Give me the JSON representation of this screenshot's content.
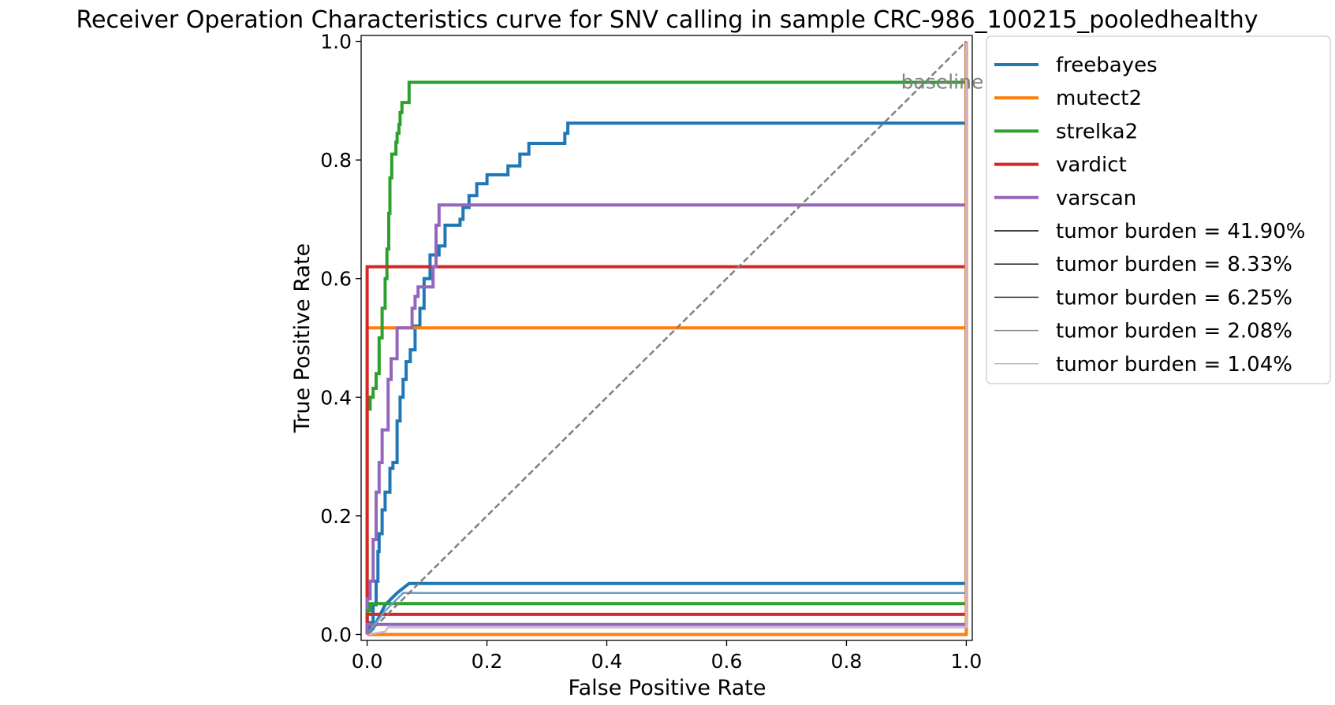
{
  "chart_data": {
    "type": "line",
    "title": "Receiver Operation Characteristics curve for SNV calling in sample CRC-986_100215_pooledhealthy",
    "xlabel": "False Positive Rate",
    "ylabel": "True Positive Rate",
    "xlim": [
      -0.01,
      1.01
    ],
    "ylim": [
      -0.01,
      1.01
    ],
    "xticks": [
      {
        "value": 0.0,
        "label": "0.0"
      },
      {
        "value": 0.2,
        "label": "0.2"
      },
      {
        "value": 0.4,
        "label": "0.4"
      },
      {
        "value": 0.6,
        "label": "0.6"
      },
      {
        "value": 0.8,
        "label": "0.8"
      },
      {
        "value": 1.0,
        "label": "1.0"
      }
    ],
    "yticks": [
      {
        "value": 0.0,
        "label": "0.0"
      },
      {
        "value": 0.2,
        "label": "0.2"
      },
      {
        "value": 0.4,
        "label": "0.4"
      },
      {
        "value": 0.6,
        "label": "0.6"
      },
      {
        "value": 0.8,
        "label": "0.8"
      },
      {
        "value": 1.0,
        "label": "1.0"
      }
    ],
    "grid": false,
    "legend_position": "outside-right-top",
    "colors": {
      "freebayes": "#1f77b4",
      "mutect2": "#ff7f0e",
      "strelka2": "#2ca02c",
      "vardict": "#d62728",
      "varscan": "#9467bd",
      "baseline": "#808080"
    },
    "baseline": {
      "label": "baseline",
      "points": [
        [
          0,
          0
        ],
        [
          1,
          1
        ]
      ],
      "label_at": [
        0.96,
        0.91
      ]
    },
    "series": [
      {
        "name": "freebayes",
        "tumor_burden": "41.90%",
        "color": "#1f77b4",
        "width": 4,
        "points": [
          [
            0,
            0
          ],
          [
            0.005,
            0
          ],
          [
            0.005,
            0.02
          ],
          [
            0.01,
            0.02
          ],
          [
            0.01,
            0.05
          ],
          [
            0.015,
            0.05
          ],
          [
            0.015,
            0.09
          ],
          [
            0.018,
            0.09
          ],
          [
            0.018,
            0.14
          ],
          [
            0.02,
            0.14
          ],
          [
            0.02,
            0.17
          ],
          [
            0.025,
            0.17
          ],
          [
            0.025,
            0.21
          ],
          [
            0.03,
            0.21
          ],
          [
            0.03,
            0.24
          ],
          [
            0.038,
            0.24
          ],
          [
            0.038,
            0.28
          ],
          [
            0.043,
            0.28
          ],
          [
            0.043,
            0.29
          ],
          [
            0.05,
            0.29
          ],
          [
            0.05,
            0.36
          ],
          [
            0.055,
            0.36
          ],
          [
            0.055,
            0.4
          ],
          [
            0.06,
            0.4
          ],
          [
            0.06,
            0.43
          ],
          [
            0.065,
            0.43
          ],
          [
            0.065,
            0.46
          ],
          [
            0.072,
            0.46
          ],
          [
            0.072,
            0.48
          ],
          [
            0.08,
            0.48
          ],
          [
            0.08,
            0.52
          ],
          [
            0.088,
            0.52
          ],
          [
            0.088,
            0.55
          ],
          [
            0.095,
            0.55
          ],
          [
            0.095,
            0.6
          ],
          [
            0.105,
            0.6
          ],
          [
            0.105,
            0.64
          ],
          [
            0.12,
            0.64
          ],
          [
            0.12,
            0.655
          ],
          [
            0.13,
            0.655
          ],
          [
            0.13,
            0.69
          ],
          [
            0.14,
            0.69
          ],
          [
            0.14,
            0.69
          ],
          [
            0.155,
            0.69
          ],
          [
            0.155,
            0.7
          ],
          [
            0.16,
            0.7
          ],
          [
            0.16,
            0.72
          ],
          [
            0.17,
            0.72
          ],
          [
            0.17,
            0.74
          ],
          [
            0.183,
            0.74
          ],
          [
            0.183,
            0.76
          ],
          [
            0.2,
            0.76
          ],
          [
            0.2,
            0.775
          ],
          [
            0.235,
            0.775
          ],
          [
            0.235,
            0.79
          ],
          [
            0.255,
            0.79
          ],
          [
            0.255,
            0.81
          ],
          [
            0.27,
            0.81
          ],
          [
            0.27,
            0.828
          ],
          [
            0.33,
            0.828
          ],
          [
            0.33,
            0.845
          ],
          [
            0.335,
            0.845
          ],
          [
            0.335,
            0.862
          ],
          [
            1.0,
            0.862
          ],
          [
            1.0,
            1.0
          ]
        ]
      },
      {
        "name": "mutect2",
        "tumor_burden": "41.90%",
        "color": "#ff7f0e",
        "width": 4,
        "points": [
          [
            0,
            0
          ],
          [
            0,
            0.517
          ],
          [
            1.0,
            0.517
          ],
          [
            1.0,
            1.0
          ]
        ]
      },
      {
        "name": "strelka2",
        "tumor_burden": "41.90%",
        "color": "#2ca02c",
        "width": 4,
        "points": [
          [
            0,
            0
          ],
          [
            0,
            0.38
          ],
          [
            0.005,
            0.38
          ],
          [
            0.005,
            0.4
          ],
          [
            0.01,
            0.4
          ],
          [
            0.01,
            0.415
          ],
          [
            0.015,
            0.415
          ],
          [
            0.015,
            0.44
          ],
          [
            0.02,
            0.44
          ],
          [
            0.02,
            0.5
          ],
          [
            0.025,
            0.5
          ],
          [
            0.025,
            0.55
          ],
          [
            0.03,
            0.55
          ],
          [
            0.03,
            0.6
          ],
          [
            0.033,
            0.6
          ],
          [
            0.033,
            0.65
          ],
          [
            0.036,
            0.65
          ],
          [
            0.036,
            0.71
          ],
          [
            0.038,
            0.71
          ],
          [
            0.038,
            0.77
          ],
          [
            0.041,
            0.77
          ],
          [
            0.041,
            0.81
          ],
          [
            0.048,
            0.81
          ],
          [
            0.048,
            0.83
          ],
          [
            0.05,
            0.83
          ],
          [
            0.05,
            0.845
          ],
          [
            0.053,
            0.845
          ],
          [
            0.053,
            0.86
          ],
          [
            0.055,
            0.86
          ],
          [
            0.055,
            0.88
          ],
          [
            0.058,
            0.88
          ],
          [
            0.058,
            0.897
          ],
          [
            0.07,
            0.897
          ],
          [
            0.07,
            0.931
          ],
          [
            1.0,
            0.931
          ],
          [
            1.0,
            1.0
          ]
        ]
      },
      {
        "name": "vardict",
        "tumor_burden": "41.90%",
        "color": "#d62728",
        "width": 4,
        "points": [
          [
            0,
            0
          ],
          [
            0,
            0.62
          ],
          [
            1.0,
            0.62
          ],
          [
            1.0,
            1.0
          ]
        ]
      },
      {
        "name": "varscan",
        "tumor_burden": "41.90%",
        "color": "#9467bd",
        "width": 4,
        "points": [
          [
            0,
            0
          ],
          [
            0,
            0.06
          ],
          [
            0.005,
            0.06
          ],
          [
            0.005,
            0.09
          ],
          [
            0.01,
            0.09
          ],
          [
            0.01,
            0.16
          ],
          [
            0.015,
            0.16
          ],
          [
            0.015,
            0.24
          ],
          [
            0.02,
            0.24
          ],
          [
            0.02,
            0.29
          ],
          [
            0.025,
            0.29
          ],
          [
            0.025,
            0.345
          ],
          [
            0.035,
            0.345
          ],
          [
            0.035,
            0.43
          ],
          [
            0.04,
            0.43
          ],
          [
            0.04,
            0.465
          ],
          [
            0.05,
            0.465
          ],
          [
            0.05,
            0.483
          ],
          [
            0.05,
            0.483
          ],
          [
            0.05,
            0.517
          ],
          [
            0.075,
            0.517
          ],
          [
            0.075,
            0.55
          ],
          [
            0.08,
            0.55
          ],
          [
            0.08,
            0.57
          ],
          [
            0.085,
            0.57
          ],
          [
            0.085,
            0.586
          ],
          [
            0.11,
            0.586
          ],
          [
            0.11,
            0.62
          ],
          [
            0.115,
            0.62
          ],
          [
            0.115,
            0.69
          ],
          [
            0.12,
            0.69
          ],
          [
            0.12,
            0.724
          ],
          [
            1.0,
            0.724
          ],
          [
            1.0,
            1.0
          ]
        ]
      },
      {
        "name": "freebayes",
        "tumor_burden": "8.33%",
        "color": "#1f77b4",
        "width": 4,
        "points": [
          [
            0,
            0
          ],
          [
            0.01,
            0.01
          ],
          [
            0.02,
            0.03
          ],
          [
            0.03,
            0.05
          ],
          [
            0.04,
            0.06
          ],
          [
            0.05,
            0.07
          ],
          [
            0.07,
            0.086
          ],
          [
            1.0,
            0.086
          ],
          [
            1.0,
            1.0
          ]
        ]
      },
      {
        "name": "strelka2",
        "tumor_burden": "8.33%",
        "color": "#2ca02c",
        "width": 4,
        "points": [
          [
            0,
            0
          ],
          [
            0,
            0.04
          ],
          [
            0.005,
            0.04
          ],
          [
            0.005,
            0.052
          ],
          [
            1.0,
            0.052
          ],
          [
            1.0,
            1.0
          ]
        ]
      },
      {
        "name": "vardict",
        "tumor_burden": "8.33%",
        "color": "#d62728",
        "width": 4,
        "points": [
          [
            0,
            0
          ],
          [
            0,
            0.034
          ],
          [
            1.0,
            0.034
          ],
          [
            1.0,
            1.0
          ]
        ]
      },
      {
        "name": "varscan",
        "tumor_burden": "8.33%",
        "color": "#9467bd",
        "width": 4,
        "points": [
          [
            0,
            0
          ],
          [
            0,
            0.017
          ],
          [
            1.0,
            0.017
          ],
          [
            1.0,
            1.0
          ]
        ]
      },
      {
        "name": "mutect2",
        "tumor_burden": "8.33%",
        "color": "#ff7f0e",
        "width": 4,
        "points": [
          [
            0,
            0
          ],
          [
            1.0,
            0
          ],
          [
            1.0,
            1.0
          ]
        ]
      },
      {
        "name": "freebayes",
        "tumor_burden": "2.08%",
        "color": "#6a9ec9",
        "width": 2.5,
        "points": [
          [
            0,
            0
          ],
          [
            0.03,
            0.04
          ],
          [
            0.06,
            0.07
          ],
          [
            1.0,
            0.07
          ],
          [
            1.0,
            1.0
          ]
        ]
      },
      {
        "name": "varscan",
        "tumor_burden": "1.04%",
        "color": "#c8bad8",
        "width": 2.5,
        "points": [
          [
            0,
            0
          ],
          [
            0.03,
            0.005
          ],
          [
            0.035,
            0.012
          ],
          [
            1.0,
            0.012
          ],
          [
            1.0,
            1.0
          ]
        ]
      }
    ]
  },
  "legend": {
    "items": [
      {
        "label": "freebayes",
        "color": "#1f77b4",
        "width": 4
      },
      {
        "label": "mutect2",
        "color": "#ff7f0e",
        "width": 4
      },
      {
        "label": "strelka2",
        "color": "#2ca02c",
        "width": 4
      },
      {
        "label": "vardict",
        "color": "#d62728",
        "width": 4
      },
      {
        "label": "varscan",
        "color": "#9467bd",
        "width": 4
      },
      {
        "label": "tumor burden = 41.90%",
        "color": "#000000",
        "width": 1.5
      },
      {
        "label": "tumor burden = 8.33%",
        "color": "#1a1a1a",
        "width": 1.5
      },
      {
        "label": "tumor burden = 6.25%",
        "color": "#3a3a3a",
        "width": 1.5
      },
      {
        "label": "tumor burden = 2.08%",
        "color": "#8a8a8a",
        "width": 1.5
      },
      {
        "label": "tumor burden = 1.04%",
        "color": "#bdbdbd",
        "width": 1.5
      }
    ]
  }
}
